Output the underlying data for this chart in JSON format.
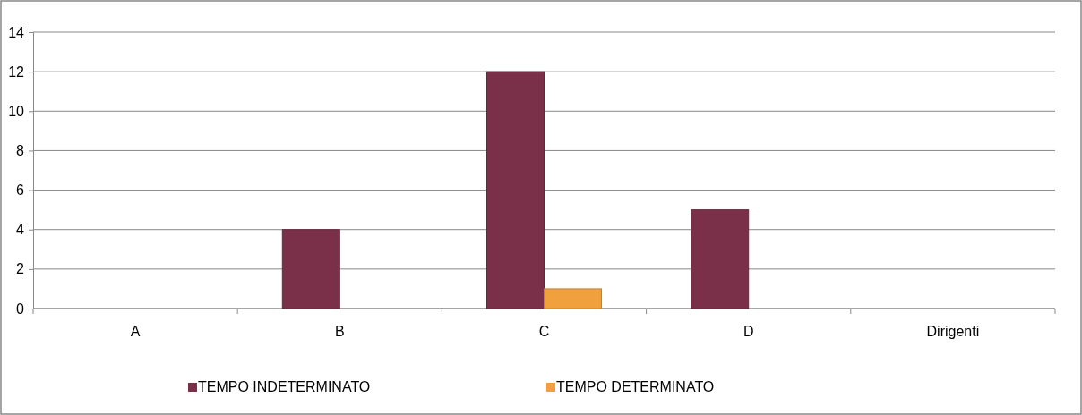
{
  "chart_data": {
    "type": "bar",
    "categories": [
      "A",
      "B",
      "C",
      "D",
      "Dirigenti"
    ],
    "series": [
      {
        "name": "TEMPO INDETERMINATO",
        "color": "#7b3049",
        "values": [
          0,
          4,
          12,
          5,
          0
        ]
      },
      {
        "name": "TEMPO DETERMINATO",
        "color": "#f0a03c",
        "values": [
          0,
          0,
          1,
          0,
          0
        ]
      }
    ],
    "ylim": [
      0,
      14
    ],
    "yticks": [
      0,
      2,
      4,
      6,
      8,
      10,
      12,
      14
    ],
    "grid": "y",
    "legend": "bottom"
  }
}
